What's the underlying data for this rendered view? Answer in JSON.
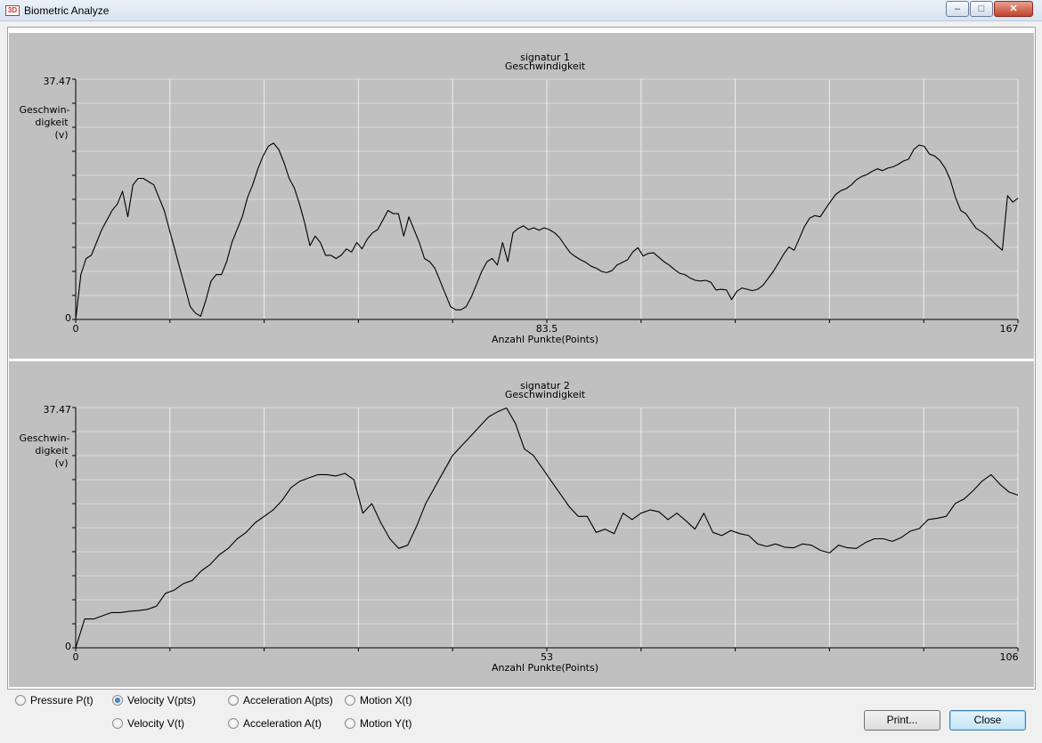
{
  "window": {
    "title": "Biometric Analyze",
    "icon": "3D",
    "controls": {
      "minimize": "minimize-icon",
      "maximize": "maximize-icon",
      "close": "close-icon"
    }
  },
  "chart_data": [
    {
      "type": "line",
      "title": "signatur 1",
      "subtitle": "Geschwindigkeit",
      "ylabel": [
        "Geschwin-",
        "digkeit",
        "(v)"
      ],
      "xlabel": "Anzahl Punkte(Points)",
      "x_ticks": [
        "0",
        "83.5",
        "167"
      ],
      "y_ticks": [
        "0",
        "37.47"
      ],
      "xlim": [
        0,
        167
      ],
      "ylim": [
        0,
        37.47
      ],
      "grid": true,
      "series": [
        {
          "values": [
            0,
            7,
            9.5,
            10,
            12,
            14,
            15.5,
            17,
            18,
            20,
            16,
            21,
            22,
            22,
            21.5,
            21,
            19,
            17,
            14,
            11,
            8,
            5,
            2,
            1,
            0.5,
            3,
            6,
            7,
            7,
            9,
            12,
            14,
            16,
            19,
            21,
            23.5,
            25.5,
            27,
            27.5,
            26.5,
            24.5,
            22,
            20.5,
            18,
            15,
            11.5,
            13,
            12,
            10,
            10,
            9.5,
            10,
            11,
            10.5,
            12,
            11,
            12.5,
            13.5,
            14,
            15.5,
            17,
            16.5,
            16.5,
            13,
            16,
            14,
            12,
            9.5,
            9,
            8,
            6,
            4,
            2,
            1.5,
            1.5,
            2,
            3.5,
            5.5,
            7.5,
            9,
            9.5,
            8.5,
            12,
            9,
            13.5,
            14.2,
            14.6,
            14,
            14.3,
            13.9,
            14.3,
            14,
            13.5,
            12.7,
            11.5,
            10.4,
            9.8,
            9.3,
            8.9,
            8.3,
            8,
            7.5,
            7.3,
            7.6,
            8.5,
            8.9,
            9.3,
            10.5,
            11.2,
            9.9,
            10.3,
            10.4,
            9.7,
            9,
            8.5,
            7.8,
            7.2,
            7,
            6.5,
            6.1,
            6,
            6.1,
            5.8,
            4.6,
            4.7,
            4.6,
            3.1,
            4.4,
            4.9,
            4.7,
            4.5,
            4.7,
            5.3,
            6.4,
            7.5,
            8.8,
            10.2,
            11.3,
            10.8,
            12.6,
            14.5,
            15.8,
            16.2,
            16,
            17.2,
            18.4,
            19.5,
            20.1,
            20.4,
            21,
            21.8,
            22.3,
            22.6,
            23.1,
            23.5,
            23.2,
            23.6,
            23.8,
            24.2,
            24.7,
            25,
            26.5,
            27.2,
            27,
            25.8,
            25.5,
            24.8,
            23.6,
            21.8,
            19,
            17,
            16.5,
            15.3,
            14.2,
            13.7,
            13.1,
            12.3,
            11.5,
            10.8,
            19.3,
            18.3,
            18.9
          ]
        }
      ]
    },
    {
      "type": "line",
      "title": "signatur 2",
      "subtitle": "Geschwindigkeit",
      "ylabel": [
        "Geschwin-",
        "digkeit",
        "(v)"
      ],
      "xlabel": "Anzahl Punkte(Points)",
      "x_ticks": [
        "0",
        "53",
        "106"
      ],
      "y_ticks": [
        "0",
        "37.47"
      ],
      "xlim": [
        0,
        106
      ],
      "ylim": [
        0,
        37.47
      ],
      "grid": true,
      "series": [
        {
          "values": [
            0,
            4.5,
            4.5,
            5,
            5.5,
            5.5,
            5.7,
            5.8,
            6,
            6.5,
            8.5,
            9,
            10,
            10.5,
            12,
            13,
            14.5,
            15.5,
            17,
            18,
            19.5,
            20.5,
            21.5,
            23,
            25,
            26,
            26.5,
            27,
            27,
            26.8,
            27.2,
            26.2,
            21,
            22.5,
            19.5,
            17,
            15.5,
            16,
            19,
            22.5,
            25,
            27.5,
            30,
            31.5,
            33,
            34.5,
            36,
            36.8,
            37.4,
            35,
            31,
            30,
            28,
            26,
            24,
            22,
            20.5,
            20.5,
            18,
            18.5,
            17.8,
            21,
            20,
            21,
            21.5,
            21.2,
            20,
            21,
            19.8,
            18.5,
            21,
            18,
            17.5,
            18.3,
            17.8,
            17.5,
            16.2,
            15.8,
            16.2,
            15.7,
            15.6,
            16.2,
            16,
            15.2,
            14.8,
            16,
            15.6,
            15.5,
            16.4,
            17,
            17,
            16.6,
            17.2,
            18.2,
            18.6,
            20,
            20.2,
            20.5,
            22.5,
            23.2,
            24.5,
            26,
            27,
            25.5,
            24.3,
            23.8
          ]
        }
      ]
    }
  ],
  "options": {
    "pressure_p_t": {
      "label": "Pressure P(t)",
      "selected": false
    },
    "velocity_v_pts": {
      "label": "Velocity V(pts)",
      "selected": true
    },
    "acceleration_a_pts": {
      "label": "Acceleration A(pts)",
      "selected": false
    },
    "motion_x_t": {
      "label": "Motion X(t)",
      "selected": false
    },
    "velocity_v_t": {
      "label": "Velocity V(t)",
      "selected": false
    },
    "acceleration_a_t": {
      "label": "Acceleration A(t)",
      "selected": false
    },
    "motion_y_t": {
      "label": "Motion Y(t)",
      "selected": false
    }
  },
  "buttons": {
    "print": "Print...",
    "close": "Close"
  }
}
